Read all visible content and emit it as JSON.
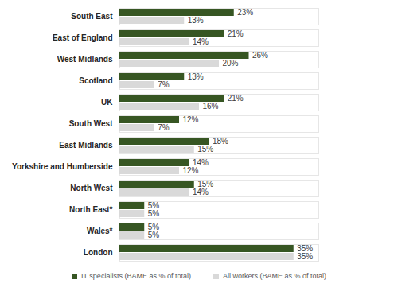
{
  "chart_data": {
    "type": "bar",
    "orientation": "horizontal",
    "categories": [
      "South East",
      "East of England",
      "West Midlands",
      "Scotland",
      "UK",
      "South West",
      "East Midlands",
      "Yorkshire and Humberside",
      "North West",
      "North East*",
      "Wales*",
      "London"
    ],
    "series": [
      {
        "name": "IT specialists (BAME as % of total)",
        "color": "#375623",
        "values": [
          23,
          21,
          26,
          13,
          21,
          12,
          18,
          14,
          15,
          5,
          5,
          35
        ],
        "value_labels": [
          "23%",
          "21%",
          "26%",
          "13%",
          "21%",
          "12%",
          "18%",
          "14%",
          "15%",
          "5%",
          "5%",
          "35%"
        ]
      },
      {
        "name": "All workers (BAME as % of total)",
        "color": "#d9d9d9",
        "values": [
          13,
          14,
          20,
          7,
          16,
          7,
          15,
          12,
          14,
          5,
          5,
          35
        ],
        "value_labels": [
          "13%",
          "14%",
          "20%",
          "7%",
          "16%",
          "7%",
          "15%",
          "12%",
          "14%",
          "5%",
          "5%",
          "35%"
        ]
      }
    ],
    "xlim": [
      0,
      40
    ],
    "data_labels": true,
    "tick_labels": "y",
    "legend": "bottom",
    "grid": false
  }
}
